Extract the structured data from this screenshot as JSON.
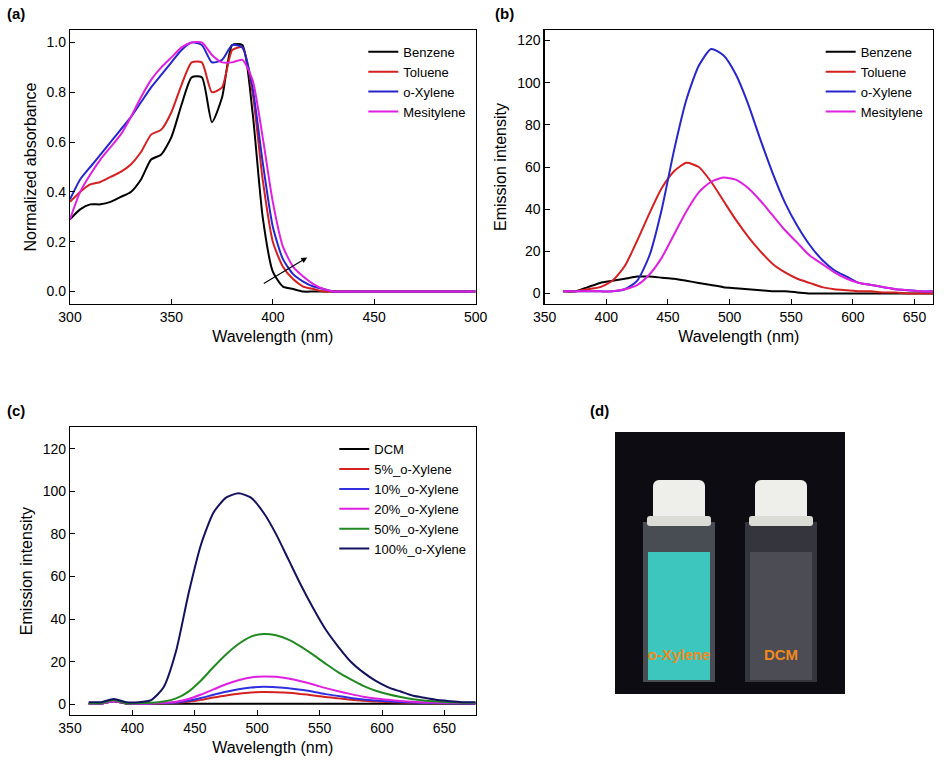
{
  "chart_data": [
    {
      "type": "line",
      "panel": "(a)",
      "x_label": "Wavelength (nm)",
      "y_label": "Normalized absorbance",
      "x": [
        300,
        305,
        310,
        315,
        320,
        325,
        330,
        335,
        340,
        345,
        350,
        355,
        360,
        365,
        370,
        375,
        380,
        385,
        390,
        395,
        400,
        405,
        410,
        415,
        420,
        425,
        430,
        435,
        440,
        445,
        450,
        455,
        460,
        465,
        470,
        475,
        480,
        485,
        490,
        495,
        500
      ],
      "series": [
        {
          "name": "Benzene",
          "color": "#000000",
          "values": [
            0.29,
            0.33,
            0.35,
            0.35,
            0.36,
            0.38,
            0.4,
            0.45,
            0.53,
            0.55,
            0.62,
            0.75,
            0.86,
            0.86,
            0.68,
            0.78,
            0.99,
            0.99,
            0.72,
            0.3,
            0.08,
            0.02,
            0.01,
            0,
            0,
            0,
            0,
            0,
            0,
            0,
            0,
            0,
            0,
            0,
            0,
            0,
            0,
            0,
            0,
            0,
            0
          ]
        },
        {
          "name": "Toluene",
          "color": "#d42020",
          "values": [
            0.36,
            0.4,
            0.43,
            0.44,
            0.46,
            0.48,
            0.51,
            0.56,
            0.63,
            0.65,
            0.72,
            0.83,
            0.92,
            0.92,
            0.8,
            0.82,
            0.97,
            0.98,
            0.8,
            0.45,
            0.2,
            0.1,
            0.05,
            0.02,
            0.01,
            0,
            0,
            0,
            0,
            0,
            0,
            0,
            0,
            0,
            0,
            0,
            0,
            0,
            0,
            0,
            0
          ]
        },
        {
          "name": "o-Xylene",
          "color": "#2626cc",
          "values": [
            0.37,
            0.45,
            0.5,
            0.55,
            0.6,
            0.65,
            0.7,
            0.76,
            0.82,
            0.87,
            0.92,
            0.97,
            1.0,
            0.99,
            0.92,
            0.93,
            0.99,
            0.98,
            0.82,
            0.52,
            0.26,
            0.13,
            0.07,
            0.04,
            0.02,
            0.01,
            0,
            0,
            0,
            0,
            0,
            0,
            0,
            0,
            0,
            0,
            0,
            0,
            0,
            0,
            0
          ]
        },
        {
          "name": "Mesitylene",
          "color": "#e020e0",
          "values": [
            0.29,
            0.4,
            0.47,
            0.53,
            0.58,
            0.63,
            0.7,
            0.78,
            0.85,
            0.9,
            0.94,
            0.98,
            1.0,
            1.0,
            0.95,
            0.92,
            0.92,
            0.93,
            0.85,
            0.62,
            0.36,
            0.18,
            0.1,
            0.06,
            0.03,
            0.01,
            0,
            0,
            0,
            0,
            0,
            0,
            0,
            0,
            0,
            0,
            0,
            0,
            0,
            0,
            0
          ]
        }
      ],
      "xlim": [
        300,
        500
      ],
      "xticks": [
        300,
        350,
        400,
        450,
        500
      ],
      "ylim": [
        -0.05,
        1.05
      ],
      "yticks": [
        {
          "value": 0,
          "label": "0.0"
        },
        0.2,
        0.4,
        0.6,
        0.8,
        {
          "value": 1,
          "label": "1.0"
        }
      ],
      "legend": "upper right"
    },
    {
      "type": "line",
      "panel": "(b)",
      "x_label": "Wavelength (nm)",
      "y_label": "Emission intensity",
      "x": [
        365,
        375,
        385,
        395,
        405,
        415,
        425,
        435,
        445,
        455,
        465,
        475,
        485,
        495,
        505,
        515,
        525,
        535,
        545,
        555,
        565,
        575,
        585,
        595,
        605,
        615,
        625,
        635,
        645,
        655,
        665
      ],
      "series": [
        {
          "name": "Benzene",
          "color": "#000000",
          "values": [
            1,
            1,
            3,
            5,
            6,
            7,
            8,
            8,
            7.5,
            7,
            6,
            5,
            4,
            3,
            2.5,
            2,
            1.5,
            1,
            1,
            0.5,
            0,
            0,
            0,
            0,
            0,
            0,
            0,
            0,
            0,
            0,
            0
          ]
        },
        {
          "name": "Toluene",
          "color": "#d42020",
          "values": [
            1,
            1,
            2,
            3,
            6,
            13,
            25,
            38,
            50,
            58,
            62,
            60,
            53,
            44,
            35,
            27,
            20,
            14,
            10,
            7,
            5,
            3,
            2,
            1.5,
            1,
            1,
            0.5,
            0.5,
            0,
            0,
            0
          ]
        },
        {
          "name": "o-Xylene",
          "color": "#2626cc",
          "values": [
            1,
            1,
            1,
            1,
            1,
            2,
            6,
            18,
            40,
            68,
            92,
            108,
            116,
            113,
            104,
            90,
            73,
            57,
            43,
            32,
            23,
            16,
            11,
            8,
            5,
            4,
            3,
            2,
            1.5,
            1,
            1
          ]
        },
        {
          "name": "Mesitylene",
          "color": "#e020e0",
          "values": [
            1,
            1,
            1,
            1,
            1,
            2,
            4,
            9,
            17,
            28,
            39,
            48,
            53,
            55,
            54,
            50,
            44,
            37,
            30,
            24,
            18,
            14,
            10,
            7,
            5,
            4,
            3,
            2,
            1.5,
            1,
            1
          ]
        }
      ],
      "xlim": [
        350,
        665
      ],
      "xticks": [
        350,
        400,
        450,
        500,
        550,
        600,
        650
      ],
      "ylim": [
        -5,
        125
      ],
      "yticks": [
        0,
        20,
        40,
        60,
        80,
        100,
        120
      ],
      "legend": "upper right"
    },
    {
      "type": "line",
      "panel": "(c)",
      "x_label": "Wavelength (nm)",
      "y_label": "Emission intensity",
      "x": [
        365,
        375,
        385,
        395,
        405,
        415,
        425,
        435,
        445,
        455,
        465,
        475,
        485,
        495,
        505,
        515,
        525,
        535,
        545,
        555,
        565,
        575,
        585,
        595,
        605,
        615,
        625,
        635,
        645,
        655,
        665,
        675
      ],
      "series": [
        {
          "name": "DCM",
          "color": "#000000",
          "values": [
            0.3,
            0.3,
            1.5,
            0.3,
            0.3,
            0.3,
            0.3,
            0.3,
            0.3,
            0.3,
            0.3,
            0.3,
            0.3,
            0.3,
            0.3,
            0.3,
            0.3,
            0.3,
            0.3,
            0.3,
            0.3,
            0.3,
            0.3,
            0.3,
            0.3,
            0.3,
            0.3,
            0.3,
            0.3,
            0.3,
            0.3,
            0.3
          ]
        },
        {
          "name": "5%_o-Xylene",
          "color": "#d42020",
          "values": [
            0.3,
            0.3,
            1.5,
            0.5,
            0.3,
            0.4,
            0.5,
            0.7,
            1.2,
            2.1,
            3.2,
            4.2,
            5,
            5.6,
            5.8,
            5.7,
            5.4,
            4.8,
            4.2,
            3.4,
            2.8,
            2.2,
            1.7,
            1.3,
            1.1,
            0.9,
            0.7,
            0.6,
            0.5,
            0.5,
            0.4,
            0.4
          ]
        },
        {
          "name": "10%_o-Xylene",
          "color": "#3030e0",
          "values": [
            0.3,
            0.3,
            1.5,
            0.5,
            0.3,
            0.4,
            0.6,
            0.9,
            1.7,
            3,
            4.5,
            5.9,
            7.1,
            7.9,
            8.2,
            8,
            7.6,
            6.8,
            5.9,
            4.8,
            3.9,
            3,
            2.3,
            1.8,
            1.4,
            1.1,
            0.9,
            0.7,
            0.6,
            0.5,
            0.4,
            0.4
          ]
        },
        {
          "name": "20%_o-Xylene",
          "color": "#e020e0",
          "values": [
            0.3,
            0.3,
            1.5,
            0.5,
            0.3,
            0.4,
            0.7,
            1.2,
            2.5,
            4.6,
            7,
            9.4,
            11.3,
            12.6,
            13.1,
            12.9,
            12.1,
            10.8,
            9.3,
            7.6,
            6.1,
            4.8,
            3.6,
            2.7,
            2.1,
            1.6,
            1.2,
            0.9,
            0.8,
            0.7,
            0.6,
            0.5
          ]
        },
        {
          "name": "50%_o-Xylene",
          "color": "#208a20",
          "values": [
            0.5,
            0.5,
            2,
            0.5,
            0.5,
            0.7,
            1.3,
            2.8,
            6,
            11.2,
            17.5,
            23.4,
            28.3,
            31.8,
            33,
            32.4,
            30.4,
            27.1,
            23.2,
            19,
            15,
            11.7,
            8.7,
            6.4,
            4.7,
            3.4,
            2.4,
            1.7,
            1.3,
            1,
            0.8,
            0.7
          ]
        },
        {
          "name": "100%_o-Xylene",
          "color": "#12125e",
          "values": [
            1,
            1,
            2.5,
            1,
            1,
            2,
            8,
            25,
            52,
            75,
            90,
            97,
            99,
            97,
            90,
            80,
            68,
            56,
            45,
            35,
            27,
            20,
            15,
            11,
            8,
            6,
            4,
            3,
            2,
            1.5,
            1,
            1
          ]
        }
      ],
      "xlim": [
        350,
        675
      ],
      "xticks": [
        350,
        400,
        450,
        500,
        550,
        600,
        650
      ],
      "ylim": [
        -5,
        130
      ],
      "yticks": [
        0,
        20,
        40,
        60,
        80,
        100,
        120
      ],
      "legend": "upper right"
    }
  ],
  "photo": {
    "panel": "(d)",
    "labels": [
      "o-Xylene",
      "DCM"
    ]
  }
}
